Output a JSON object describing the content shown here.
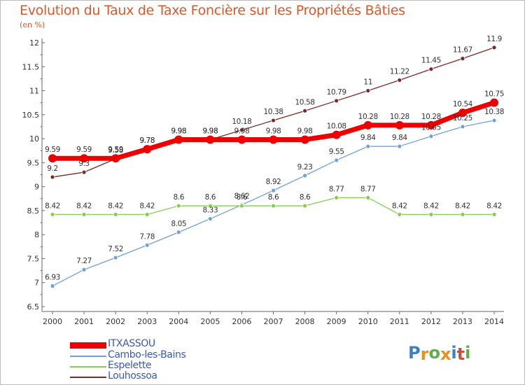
{
  "header": {
    "title": "Evolution du Taux de Taxe Foncière sur les Propriétés Bâties",
    "unit": "(en %)"
  },
  "logo": {
    "text": "Proxiti",
    "letters": [
      "P",
      "r",
      "o",
      "x",
      "i",
      "t",
      "i"
    ],
    "colors": [
      "#3a7fd0",
      "#e8901c",
      "#5ab04a",
      "#e8901c",
      "#3a7fd0",
      "#d84a3a",
      "#5ab04a"
    ]
  },
  "chart_data": {
    "type": "line",
    "title": "Evolution du Taux de Taxe Foncière sur les Propriétés Bâties",
    "ylabel": "(en %)",
    "x": [
      "2000",
      "2001",
      "2002",
      "2003",
      "2004",
      "2005",
      "2006",
      "2007",
      "2008",
      "2009",
      "2010",
      "2011",
      "2012",
      "2013",
      "2014"
    ],
    "ylim": [
      6.5,
      12
    ],
    "yticks": [
      "6.5",
      "7",
      "7.5",
      "8",
      "8.5",
      "9",
      "9.5",
      "10",
      "10.5",
      "11",
      "11.5",
      "12"
    ],
    "grid": false,
    "legend": "bottom-left",
    "series": [
      {
        "name": "ITXASSOU",
        "color": "#ee0000",
        "width": 7,
        "marker": 6,
        "values": [
          9.59,
          9.59,
          9.59,
          9.78,
          9.98,
          9.98,
          9.98,
          9.98,
          9.98,
          10.08,
          10.28,
          10.28,
          10.28,
          10.54,
          10.75
        ],
        "labels": [
          "9.59",
          "9.59",
          "9.59",
          "9.78",
          "9.98",
          "9.98",
          "9.98",
          "9.98",
          "9.98",
          "10.08",
          "10.28",
          "10.28",
          "10.28",
          "10.54",
          "10.75"
        ]
      },
      {
        "name": "Cambo-les-Bains",
        "color": "#6fa0d8",
        "width": 1.3,
        "marker": 3,
        "values": [
          6.93,
          7.27,
          7.52,
          7.78,
          8.05,
          8.33,
          8.62,
          8.92,
          9.23,
          9.55,
          9.84,
          9.84,
          10.05,
          10.25,
          10.38
        ],
        "labels": [
          "6.93",
          "7.27",
          "7.52",
          "7.78",
          "8.05",
          "8.33",
          "8.62",
          "8.92",
          "9.23",
          "9.55",
          "9.84",
          "9.84",
          "10.05",
          "10.25",
          "10.38"
        ]
      },
      {
        "name": "Espelette",
        "color": "#88cc55",
        "width": 1.3,
        "marker": 3,
        "values": [
          8.42,
          8.42,
          8.42,
          8.42,
          8.6,
          8.6,
          8.6,
          8.6,
          8.6,
          8.77,
          8.77,
          8.42,
          8.42,
          8.42,
          8.42
        ],
        "labels": [
          "8.42",
          "8.42",
          "8.42",
          "8.42",
          "8.6",
          "8.6",
          "8.6",
          "8.6",
          "8.6",
          "8.77",
          "8.77",
          "8.42",
          "8.42",
          "8.42",
          "8.42"
        ]
      },
      {
        "name": "Louhossoa",
        "color": "#7a2a2a",
        "width": 1.3,
        "marker": 3,
        "values": [
          9.2,
          9.3,
          9.58,
          9.78,
          9.98,
          9.98,
          10.18,
          10.38,
          10.58,
          10.79,
          11,
          11.22,
          11.45,
          11.67,
          11.9
        ],
        "labels": [
          "9.2",
          "9.3",
          "9.58",
          "9.78",
          "9.98",
          "9.98",
          "10.18",
          "10.38",
          "10.58",
          "10.79",
          "11",
          "11.22",
          "11.45",
          "11.67",
          "11.9"
        ]
      }
    ]
  }
}
